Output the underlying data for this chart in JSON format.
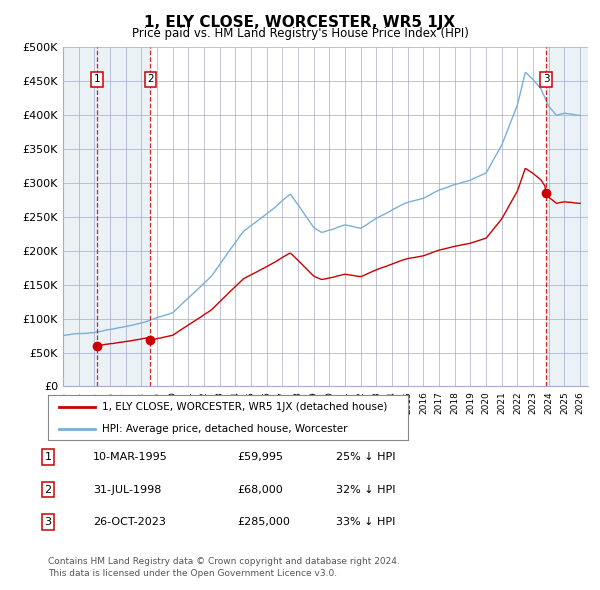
{
  "title": "1, ELY CLOSE, WORCESTER, WR5 1JX",
  "subtitle": "Price paid vs. HM Land Registry's House Price Index (HPI)",
  "ylim": [
    0,
    500000
  ],
  "yticks": [
    0,
    50000,
    100000,
    150000,
    200000,
    250000,
    300000,
    350000,
    400000,
    450000,
    500000
  ],
  "ytick_labels": [
    "£0",
    "£50K",
    "£100K",
    "£150K",
    "£200K",
    "£250K",
    "£300K",
    "£350K",
    "£400K",
    "£450K",
    "£500K"
  ],
  "xlim_start": 1993.0,
  "xlim_end": 2026.5,
  "background_color": "#ffffff",
  "grid_color": "#aaaacc",
  "sale_color": "#cc0000",
  "hpi_color": "#7bafd4",
  "shade_color": "#dce8f0",
  "transactions": [
    {
      "num": 1,
      "date_dec": 1995.19,
      "price": 59995,
      "label": "10-MAR-1995",
      "price_str": "£59,995",
      "pct": "25% ↓ HPI"
    },
    {
      "num": 2,
      "date_dec": 1998.58,
      "price": 68000,
      "label": "31-JUL-1998",
      "price_str": "£68,000",
      "pct": "32% ↓ HPI"
    },
    {
      "num": 3,
      "date_dec": 2023.82,
      "price": 285000,
      "label": "26-OCT-2023",
      "price_str": "£285,000",
      "pct": "33% ↓ HPI"
    }
  ],
  "legend_line1": "1, ELY CLOSE, WORCESTER, WR5 1JX (detached house)",
  "legend_line2": "HPI: Average price, detached house, Worcester",
  "footnote1": "Contains HM Land Registry data © Crown copyright and database right 2024.",
  "footnote2": "This data is licensed under the Open Government Licence v3.0."
}
